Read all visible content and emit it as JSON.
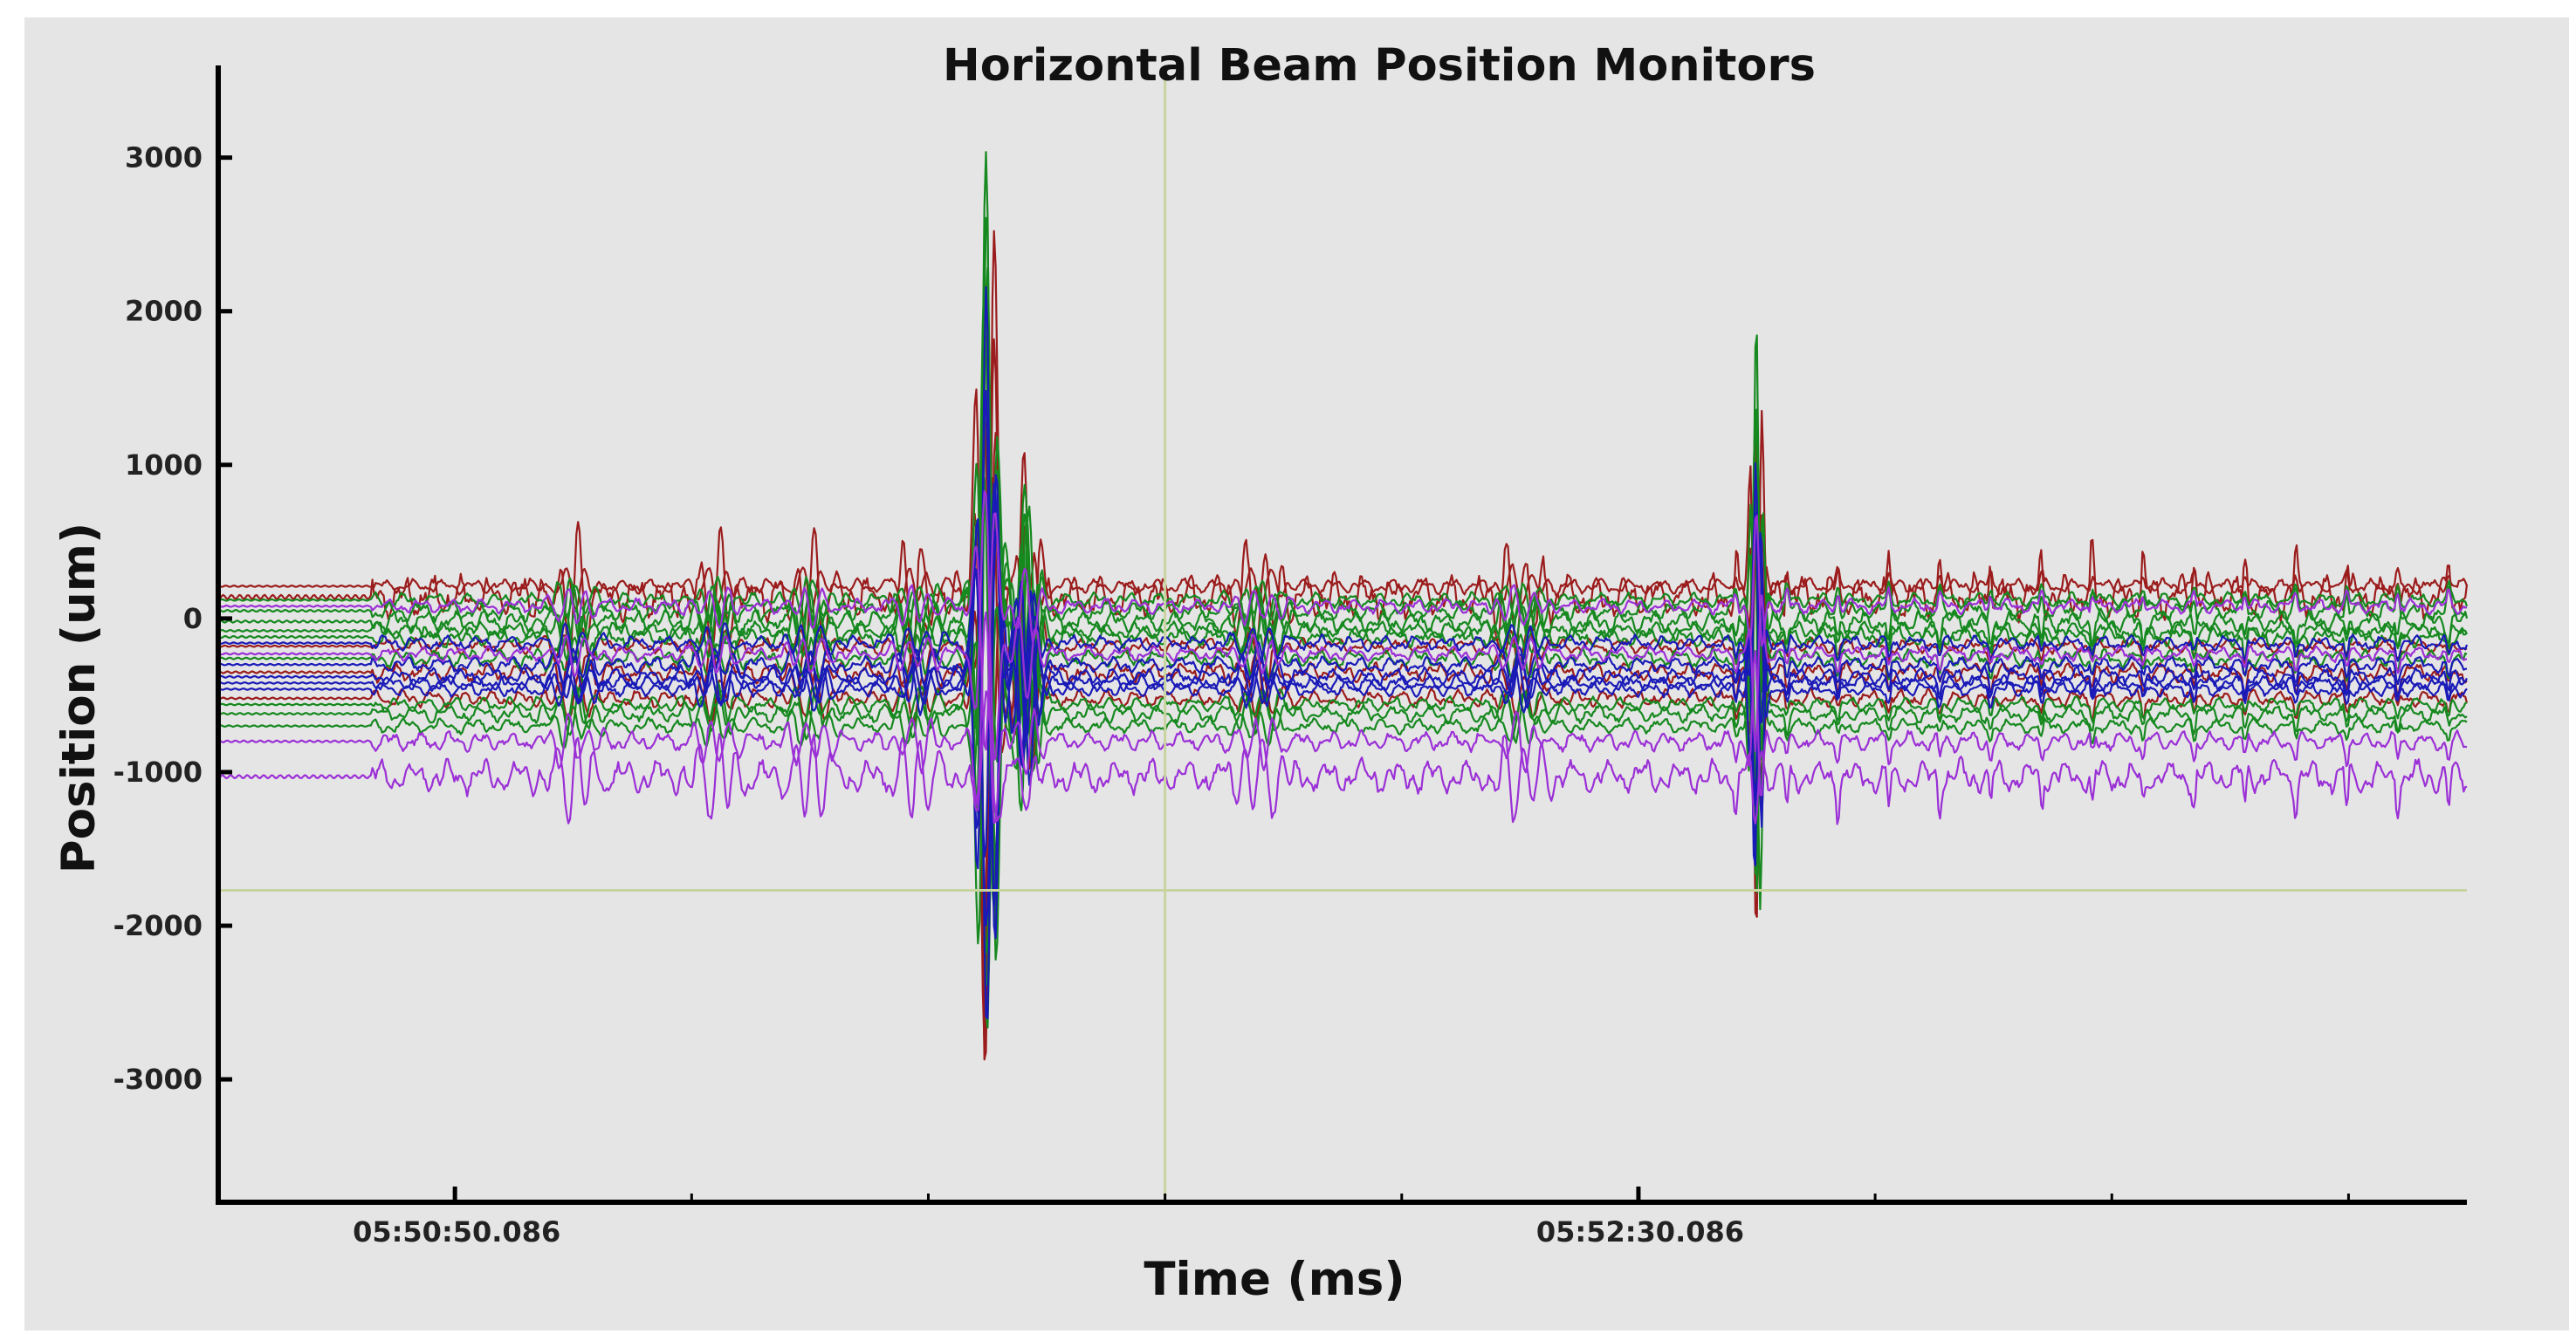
{
  "chart_data": {
    "type": "line",
    "title": "Horizontal Beam Position Monitors",
    "xlabel": "Time (ms)",
    "ylabel": "Position (um)",
    "x_tick_labels": [
      "05:50:50.086",
      "05:52:30.086"
    ],
    "x_tick_values_s": [
      10,
      110
    ],
    "xlim_s": [
      -10,
      180
    ],
    "y_ticks": [
      3000,
      2000,
      1000,
      0,
      -1000,
      -2000,
      -3000
    ],
    "ylim": [
      -3800,
      3600
    ],
    "grid": false,
    "legend": "none",
    "cursor": {
      "x_s": 70,
      "y": -1770
    },
    "events": [
      {
        "t_s": 55,
        "peak_max": 3300,
        "peak_min": -3500
      },
      {
        "t_s": 120,
        "peak_max": 2170,
        "peak_min": -2350
      }
    ],
    "colors": {
      "background": "#e5e5e5",
      "axis": "#000000",
      "cursor": "#c8d4a0",
      "red_series": "#9b1c1c",
      "green_series": "#16891f",
      "blue_series": "#1a1ab8",
      "purple_series": "#9b30d6"
    },
    "series": [
      {
        "color_key": "red_series",
        "baseline": 210,
        "noise": 30,
        "amp1": 3300,
        "amp2": 2170
      },
      {
        "color_key": "red_series",
        "baseline": 140,
        "noise": 90,
        "amp1": 1250,
        "amp2": 800
      },
      {
        "color_key": "red_series",
        "baseline": -350,
        "noise": 40,
        "amp1": 2400,
        "amp2": 1600
      },
      {
        "color_key": "red_series",
        "baseline": -520,
        "noise": 35,
        "amp1": 1800,
        "amp2": 1200
      },
      {
        "color_key": "red_series",
        "baseline": -180,
        "noise": 30,
        "amp1": 2800,
        "amp2": 1900
      },
      {
        "color_key": "green_series",
        "baseline": 50,
        "noise": 40,
        "amp1": 3000,
        "amp2": 1900
      },
      {
        "color_key": "green_series",
        "baseline": -20,
        "noise": 45,
        "amp1": 2700,
        "amp2": 1700
      },
      {
        "color_key": "green_series",
        "baseline": -120,
        "noise": 40,
        "amp1": 2500,
        "amp2": 1500
      },
      {
        "color_key": "green_series",
        "baseline": -260,
        "noise": 35,
        "amp1": 2200,
        "amp2": 1400
      },
      {
        "color_key": "green_series",
        "baseline": -620,
        "noise": 35,
        "amp1": 1700,
        "amp2": 1100
      },
      {
        "color_key": "green_series",
        "baseline": -700,
        "noise": 30,
        "amp1": 1500,
        "amp2": 1000
      },
      {
        "color_key": "green_series",
        "baseline": -560,
        "noise": 30,
        "amp1": 2900,
        "amp2": 1800
      },
      {
        "color_key": "green_series",
        "baseline": -80,
        "noise": 35,
        "amp1": 2600,
        "amp2": 1700
      },
      {
        "color_key": "green_series",
        "baseline": 120,
        "noise": 30,
        "amp1": 2000,
        "amp2": 1300
      },
      {
        "color_key": "blue_series",
        "baseline": -420,
        "noise": 30,
        "amp1": 2600,
        "amp2": 1500
      },
      {
        "color_key": "blue_series",
        "baseline": -380,
        "noise": 35,
        "amp1": 2300,
        "amp2": 1400
      },
      {
        "color_key": "blue_series",
        "baseline": -300,
        "noise": 30,
        "amp1": 1700,
        "amp2": 1000
      },
      {
        "color_key": "blue_series",
        "baseline": -460,
        "noise": 30,
        "amp1": 2000,
        "amp2": 1200
      },
      {
        "color_key": "blue_series",
        "baseline": -160,
        "noise": 30,
        "amp1": 1500,
        "amp2": 900
      },
      {
        "color_key": "purple_series",
        "baseline": -1030,
        "noise": 70,
        "amp1": 600,
        "amp2": 400
      },
      {
        "color_key": "purple_series",
        "baseline": -800,
        "noise": 40,
        "amp1": 900,
        "amp2": 600
      },
      {
        "color_key": "purple_series",
        "baseline": -230,
        "noise": 30,
        "amp1": 1100,
        "amp2": 700
      },
      {
        "color_key": "purple_series",
        "baseline": 80,
        "noise": 30,
        "amp1": 1000,
        "amp2": 600
      }
    ]
  }
}
